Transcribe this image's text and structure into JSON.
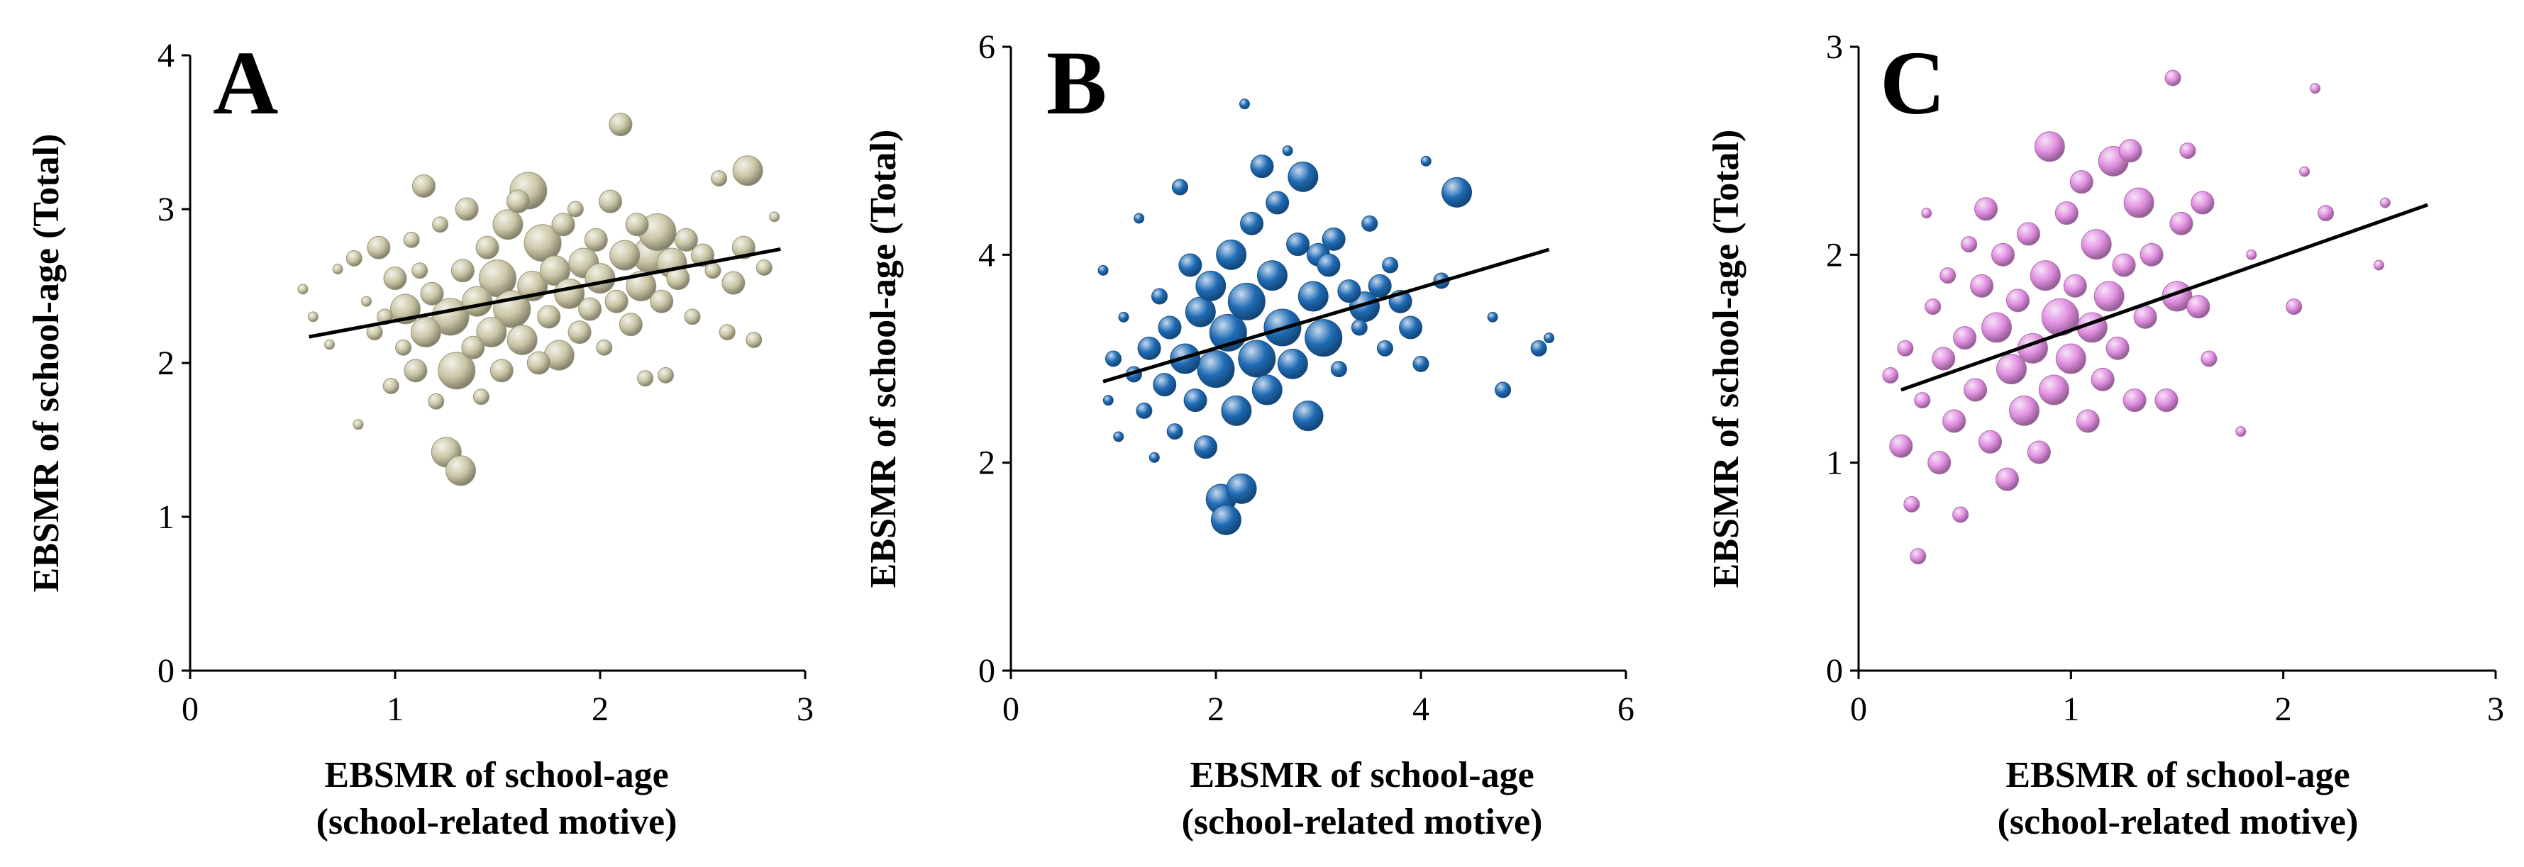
{
  "chart_data": [
    {
      "type": "scatter",
      "panel_label": "A",
      "xlabel": [
        "EBSMR of school-age",
        "(school-related motive)"
      ],
      "ylabel": "EBSMR of school-age (Total)",
      "xlim": [
        0,
        3
      ],
      "ylim": [
        0,
        4
      ],
      "xticks": [
        "0",
        "1",
        "2",
        "3"
      ],
      "yticks": [
        "0",
        "1",
        "2",
        "3",
        "4"
      ],
      "grid": false,
      "legend": "none",
      "marker": "bubble",
      "color": "#cbc6a6",
      "trendline": {
        "x": [
          0.58,
          2.88
        ],
        "y": [
          2.17,
          2.74
        ]
      },
      "points": [
        {
          "x": 0.55,
          "y": 2.48,
          "s": 1
        },
        {
          "x": 0.6,
          "y": 2.3,
          "s": 1
        },
        {
          "x": 0.68,
          "y": 2.12,
          "s": 1
        },
        {
          "x": 0.72,
          "y": 2.61,
          "s": 1
        },
        {
          "x": 0.8,
          "y": 2.68,
          "s": 2
        },
        {
          "x": 0.82,
          "y": 1.6,
          "s": 1
        },
        {
          "x": 0.86,
          "y": 2.4,
          "s": 1
        },
        {
          "x": 0.9,
          "y": 2.2,
          "s": 2
        },
        {
          "x": 0.92,
          "y": 2.75,
          "s": 3
        },
        {
          "x": 0.95,
          "y": 2.3,
          "s": 2
        },
        {
          "x": 0.98,
          "y": 1.85,
          "s": 2
        },
        {
          "x": 1.0,
          "y": 2.55,
          "s": 3
        },
        {
          "x": 1.04,
          "y": 2.1,
          "s": 2
        },
        {
          "x": 1.05,
          "y": 2.35,
          "s": 4
        },
        {
          "x": 1.08,
          "y": 2.8,
          "s": 2
        },
        {
          "x": 1.1,
          "y": 1.95,
          "s": 3
        },
        {
          "x": 1.12,
          "y": 2.6,
          "s": 2
        },
        {
          "x": 1.14,
          "y": 3.15,
          "s": 3
        },
        {
          "x": 1.15,
          "y": 2.2,
          "s": 4
        },
        {
          "x": 1.18,
          "y": 2.45,
          "s": 3
        },
        {
          "x": 1.2,
          "y": 1.75,
          "s": 2
        },
        {
          "x": 1.22,
          "y": 2.9,
          "s": 2
        },
        {
          "x": 1.25,
          "y": 1.42,
          "s": 4
        },
        {
          "x": 1.27,
          "y": 2.3,
          "s": 5
        },
        {
          "x": 1.3,
          "y": 1.95,
          "s": 5
        },
        {
          "x": 1.32,
          "y": 1.3,
          "s": 4
        },
        {
          "x": 1.33,
          "y": 2.6,
          "s": 3
        },
        {
          "x": 1.35,
          "y": 3.0,
          "s": 3
        },
        {
          "x": 1.38,
          "y": 2.1,
          "s": 3
        },
        {
          "x": 1.4,
          "y": 2.4,
          "s": 4
        },
        {
          "x": 1.42,
          "y": 1.78,
          "s": 2
        },
        {
          "x": 1.45,
          "y": 2.75,
          "s": 3
        },
        {
          "x": 1.47,
          "y": 2.2,
          "s": 4
        },
        {
          "x": 1.5,
          "y": 2.55,
          "s": 5
        },
        {
          "x": 1.52,
          "y": 1.95,
          "s": 3
        },
        {
          "x": 1.55,
          "y": 2.9,
          "s": 4
        },
        {
          "x": 1.57,
          "y": 2.35,
          "s": 5
        },
        {
          "x": 1.6,
          "y": 3.05,
          "s": 3
        },
        {
          "x": 1.62,
          "y": 2.15,
          "s": 4
        },
        {
          "x": 1.65,
          "y": 3.12,
          "s": 5
        },
        {
          "x": 1.67,
          "y": 2.5,
          "s": 4
        },
        {
          "x": 1.7,
          "y": 2.0,
          "s": 3
        },
        {
          "x": 1.72,
          "y": 2.78,
          "s": 5
        },
        {
          "x": 1.75,
          "y": 2.3,
          "s": 3
        },
        {
          "x": 1.78,
          "y": 2.6,
          "s": 4
        },
        {
          "x": 1.8,
          "y": 2.05,
          "s": 4
        },
        {
          "x": 1.82,
          "y": 2.9,
          "s": 3
        },
        {
          "x": 1.85,
          "y": 2.45,
          "s": 4
        },
        {
          "x": 1.88,
          "y": 3.0,
          "s": 2
        },
        {
          "x": 1.9,
          "y": 2.2,
          "s": 3
        },
        {
          "x": 1.92,
          "y": 2.65,
          "s": 4
        },
        {
          "x": 1.95,
          "y": 2.35,
          "s": 3
        },
        {
          "x": 1.98,
          "y": 2.8,
          "s": 3
        },
        {
          "x": 2.0,
          "y": 2.55,
          "s": 4
        },
        {
          "x": 2.02,
          "y": 2.1,
          "s": 2
        },
        {
          "x": 2.05,
          "y": 3.05,
          "s": 3
        },
        {
          "x": 2.08,
          "y": 2.4,
          "s": 3
        },
        {
          "x": 2.1,
          "y": 3.55,
          "s": 3
        },
        {
          "x": 2.12,
          "y": 2.7,
          "s": 4
        },
        {
          "x": 2.15,
          "y": 2.25,
          "s": 3
        },
        {
          "x": 2.18,
          "y": 2.9,
          "s": 3
        },
        {
          "x": 2.2,
          "y": 2.5,
          "s": 4
        },
        {
          "x": 2.22,
          "y": 1.9,
          "s": 2
        },
        {
          "x": 2.25,
          "y": 2.7,
          "s": 5
        },
        {
          "x": 2.28,
          "y": 2.85,
          "s": 5
        },
        {
          "x": 2.3,
          "y": 2.4,
          "s": 3
        },
        {
          "x": 2.32,
          "y": 1.92,
          "s": 2
        },
        {
          "x": 2.35,
          "y": 2.65,
          "s": 4
        },
        {
          "x": 2.38,
          "y": 2.55,
          "s": 3
        },
        {
          "x": 2.42,
          "y": 2.8,
          "s": 3
        },
        {
          "x": 2.45,
          "y": 2.3,
          "s": 2
        },
        {
          "x": 2.5,
          "y": 2.7,
          "s": 3
        },
        {
          "x": 2.55,
          "y": 2.6,
          "s": 2
        },
        {
          "x": 2.58,
          "y": 3.2,
          "s": 2
        },
        {
          "x": 2.62,
          "y": 2.2,
          "s": 2
        },
        {
          "x": 2.65,
          "y": 2.52,
          "s": 3
        },
        {
          "x": 2.7,
          "y": 2.75,
          "s": 3
        },
        {
          "x": 2.72,
          "y": 3.25,
          "s": 4
        },
        {
          "x": 2.75,
          "y": 2.15,
          "s": 2
        },
        {
          "x": 2.8,
          "y": 2.62,
          "s": 2
        },
        {
          "x": 2.85,
          "y": 2.95,
          "s": 1
        }
      ]
    },
    {
      "type": "scatter",
      "panel_label": "B",
      "xlabel": [
        "EBSMR of school-age",
        "(school-related motive)"
      ],
      "ylabel": "EBSMR of school-age (Total)",
      "xlim": [
        0,
        6
      ],
      "ylim": [
        0,
        6
      ],
      "xticks": [
        "0",
        "2",
        "4",
        "6"
      ],
      "yticks": [
        "0",
        "2",
        "4",
        "6"
      ],
      "grid": false,
      "legend": "none",
      "marker": "bubble",
      "color": "#1f6bb5",
      "trendline": {
        "x": [
          0.9,
          5.25
        ],
        "y": [
          2.78,
          4.05
        ]
      },
      "points": [
        {
          "x": 0.9,
          "y": 3.85,
          "s": 1
        },
        {
          "x": 0.95,
          "y": 2.6,
          "s": 1
        },
        {
          "x": 1.0,
          "y": 3.0,
          "s": 2
        },
        {
          "x": 1.05,
          "y": 2.25,
          "s": 1
        },
        {
          "x": 1.1,
          "y": 3.4,
          "s": 1
        },
        {
          "x": 1.2,
          "y": 2.85,
          "s": 2
        },
        {
          "x": 1.25,
          "y": 4.35,
          "s": 1
        },
        {
          "x": 1.3,
          "y": 2.5,
          "s": 2
        },
        {
          "x": 1.35,
          "y": 3.1,
          "s": 3
        },
        {
          "x": 1.4,
          "y": 2.05,
          "s": 1
        },
        {
          "x": 1.45,
          "y": 3.6,
          "s": 2
        },
        {
          "x": 1.5,
          "y": 2.75,
          "s": 3
        },
        {
          "x": 1.55,
          "y": 3.3,
          "s": 3
        },
        {
          "x": 1.6,
          "y": 2.3,
          "s": 2
        },
        {
          "x": 1.65,
          "y": 4.65,
          "s": 2
        },
        {
          "x": 1.7,
          "y": 3.0,
          "s": 4
        },
        {
          "x": 1.75,
          "y": 3.9,
          "s": 3
        },
        {
          "x": 1.8,
          "y": 2.6,
          "s": 3
        },
        {
          "x": 1.85,
          "y": 3.45,
          "s": 4
        },
        {
          "x": 1.9,
          "y": 2.15,
          "s": 3
        },
        {
          "x": 1.95,
          "y": 3.7,
          "s": 4
        },
        {
          "x": 2.0,
          "y": 2.9,
          "s": 5
        },
        {
          "x": 2.05,
          "y": 1.65,
          "s": 4
        },
        {
          "x": 2.1,
          "y": 1.45,
          "s": 4
        },
        {
          "x": 2.12,
          "y": 3.25,
          "s": 5
        },
        {
          "x": 2.15,
          "y": 4.0,
          "s": 4
        },
        {
          "x": 2.2,
          "y": 2.5,
          "s": 4
        },
        {
          "x": 2.25,
          "y": 1.75,
          "s": 4
        },
        {
          "x": 2.28,
          "y": 5.45,
          "s": 1
        },
        {
          "x": 2.3,
          "y": 3.55,
          "s": 5
        },
        {
          "x": 2.35,
          "y": 4.3,
          "s": 3
        },
        {
          "x": 2.4,
          "y": 3.0,
          "s": 5
        },
        {
          "x": 2.45,
          "y": 4.85,
          "s": 3
        },
        {
          "x": 2.5,
          "y": 2.7,
          "s": 4
        },
        {
          "x": 2.55,
          "y": 3.8,
          "s": 4
        },
        {
          "x": 2.6,
          "y": 4.5,
          "s": 3
        },
        {
          "x": 2.65,
          "y": 3.3,
          "s": 5
        },
        {
          "x": 2.7,
          "y": 5.0,
          "s": 1
        },
        {
          "x": 2.75,
          "y": 2.95,
          "s": 4
        },
        {
          "x": 2.8,
          "y": 4.1,
          "s": 3
        },
        {
          "x": 2.85,
          "y": 4.75,
          "s": 4
        },
        {
          "x": 2.9,
          "y": 2.45,
          "s": 4
        },
        {
          "x": 2.95,
          "y": 3.6,
          "s": 4
        },
        {
          "x": 3.0,
          "y": 4.0,
          "s": 3
        },
        {
          "x": 3.05,
          "y": 3.2,
          "s": 5
        },
        {
          "x": 3.1,
          "y": 3.9,
          "s": 3
        },
        {
          "x": 3.15,
          "y": 4.15,
          "s": 3
        },
        {
          "x": 3.2,
          "y": 2.9,
          "s": 2
        },
        {
          "x": 3.3,
          "y": 3.65,
          "s": 3
        },
        {
          "x": 3.4,
          "y": 3.3,
          "s": 2
        },
        {
          "x": 3.45,
          "y": 3.5,
          "s": 4
        },
        {
          "x": 3.5,
          "y": 4.3,
          "s": 2
        },
        {
          "x": 3.6,
          "y": 3.7,
          "s": 3
        },
        {
          "x": 3.65,
          "y": 3.1,
          "s": 2
        },
        {
          "x": 3.7,
          "y": 3.9,
          "s": 2
        },
        {
          "x": 3.8,
          "y": 3.55,
          "s": 3
        },
        {
          "x": 3.9,
          "y": 3.3,
          "s": 3
        },
        {
          "x": 4.0,
          "y": 2.95,
          "s": 2
        },
        {
          "x": 4.05,
          "y": 4.9,
          "s": 1
        },
        {
          "x": 4.2,
          "y": 3.75,
          "s": 2
        },
        {
          "x": 4.35,
          "y": 4.6,
          "s": 4
        },
        {
          "x": 4.7,
          "y": 3.4,
          "s": 1
        },
        {
          "x": 4.8,
          "y": 2.7,
          "s": 2
        },
        {
          "x": 5.15,
          "y": 3.1,
          "s": 2
        },
        {
          "x": 5.25,
          "y": 3.2,
          "s": 1
        }
      ]
    },
    {
      "type": "scatter",
      "panel_label": "C",
      "xlabel": [
        "EBSMR of school-age",
        "(school-related motive)"
      ],
      "ylabel": "EBSMR of school-age (Total)",
      "xlim": [
        0,
        3
      ],
      "ylim": [
        0,
        3
      ],
      "xticks": [
        "0",
        "1",
        "2",
        "3"
      ],
      "yticks": [
        "0",
        "1",
        "2",
        "3"
      ],
      "grid": false,
      "legend": "none",
      "marker": "bubble",
      "color": "#e08fe0",
      "trendline": {
        "x": [
          0.2,
          2.68
        ],
        "y": [
          1.35,
          2.24
        ]
      },
      "points": [
        {
          "x": 0.15,
          "y": 1.42,
          "s": 2
        },
        {
          "x": 0.2,
          "y": 1.08,
          "s": 3
        },
        {
          "x": 0.22,
          "y": 1.55,
          "s": 2
        },
        {
          "x": 0.25,
          "y": 0.8,
          "s": 2
        },
        {
          "x": 0.28,
          "y": 0.55,
          "s": 2
        },
        {
          "x": 0.3,
          "y": 1.3,
          "s": 2
        },
        {
          "x": 0.32,
          "y": 2.2,
          "s": 1
        },
        {
          "x": 0.35,
          "y": 1.75,
          "s": 2
        },
        {
          "x": 0.38,
          "y": 1.0,
          "s": 3
        },
        {
          "x": 0.4,
          "y": 1.5,
          "s": 3
        },
        {
          "x": 0.42,
          "y": 1.9,
          "s": 2
        },
        {
          "x": 0.45,
          "y": 1.2,
          "s": 3
        },
        {
          "x": 0.48,
          "y": 0.75,
          "s": 2
        },
        {
          "x": 0.5,
          "y": 1.6,
          "s": 3
        },
        {
          "x": 0.52,
          "y": 2.05,
          "s": 2
        },
        {
          "x": 0.55,
          "y": 1.35,
          "s": 3
        },
        {
          "x": 0.58,
          "y": 1.85,
          "s": 3
        },
        {
          "x": 0.6,
          "y": 2.22,
          "s": 3
        },
        {
          "x": 0.62,
          "y": 1.1,
          "s": 3
        },
        {
          "x": 0.65,
          "y": 1.65,
          "s": 4
        },
        {
          "x": 0.68,
          "y": 2.0,
          "s": 3
        },
        {
          "x": 0.7,
          "y": 0.92,
          "s": 3
        },
        {
          "x": 0.72,
          "y": 1.45,
          "s": 4
        },
        {
          "x": 0.75,
          "y": 1.78,
          "s": 3
        },
        {
          "x": 0.78,
          "y": 1.25,
          "s": 4
        },
        {
          "x": 0.8,
          "y": 2.1,
          "s": 3
        },
        {
          "x": 0.82,
          "y": 1.55,
          "s": 4
        },
        {
          "x": 0.85,
          "y": 1.05,
          "s": 3
        },
        {
          "x": 0.88,
          "y": 1.9,
          "s": 4
        },
        {
          "x": 0.9,
          "y": 2.52,
          "s": 4
        },
        {
          "x": 0.92,
          "y": 1.35,
          "s": 4
        },
        {
          "x": 0.95,
          "y": 1.7,
          "s": 5
        },
        {
          "x": 0.98,
          "y": 2.2,
          "s": 3
        },
        {
          "x": 1.0,
          "y": 1.5,
          "s": 4
        },
        {
          "x": 1.02,
          "y": 1.85,
          "s": 3
        },
        {
          "x": 1.05,
          "y": 2.35,
          "s": 3
        },
        {
          "x": 1.08,
          "y": 1.2,
          "s": 3
        },
        {
          "x": 1.1,
          "y": 1.65,
          "s": 4
        },
        {
          "x": 1.12,
          "y": 2.05,
          "s": 4
        },
        {
          "x": 1.15,
          "y": 1.4,
          "s": 3
        },
        {
          "x": 1.18,
          "y": 1.8,
          "s": 4
        },
        {
          "x": 1.2,
          "y": 2.45,
          "s": 4
        },
        {
          "x": 1.22,
          "y": 1.55,
          "s": 3
        },
        {
          "x": 1.25,
          "y": 1.95,
          "s": 3
        },
        {
          "x": 1.28,
          "y": 2.5,
          "s": 3
        },
        {
          "x": 1.3,
          "y": 1.3,
          "s": 3
        },
        {
          "x": 1.32,
          "y": 2.25,
          "s": 4
        },
        {
          "x": 1.35,
          "y": 1.7,
          "s": 3
        },
        {
          "x": 1.38,
          "y": 2.0,
          "s": 3
        },
        {
          "x": 1.45,
          "y": 1.3,
          "s": 3
        },
        {
          "x": 1.48,
          "y": 2.85,
          "s": 2
        },
        {
          "x": 1.5,
          "y": 1.8,
          "s": 4
        },
        {
          "x": 1.52,
          "y": 2.15,
          "s": 3
        },
        {
          "x": 1.55,
          "y": 2.5,
          "s": 2
        },
        {
          "x": 1.6,
          "y": 1.75,
          "s": 3
        },
        {
          "x": 1.62,
          "y": 2.25,
          "s": 3
        },
        {
          "x": 1.65,
          "y": 1.5,
          "s": 2
        },
        {
          "x": 1.8,
          "y": 1.15,
          "s": 1
        },
        {
          "x": 1.85,
          "y": 2.0,
          "s": 1
        },
        {
          "x": 2.05,
          "y": 1.75,
          "s": 2
        },
        {
          "x": 2.1,
          "y": 2.4,
          "s": 1
        },
        {
          "x": 2.15,
          "y": 2.8,
          "s": 1
        },
        {
          "x": 2.2,
          "y": 2.2,
          "s": 2
        },
        {
          "x": 2.45,
          "y": 1.95,
          "s": 1
        },
        {
          "x": 2.48,
          "y": 2.25,
          "s": 1
        }
      ]
    }
  ]
}
